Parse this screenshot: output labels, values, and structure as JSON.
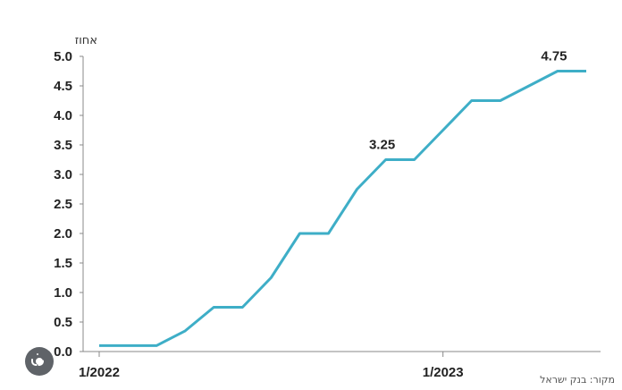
{
  "chart_data": {
    "type": "line",
    "ylabel": "אחוז",
    "ylim": [
      0,
      5.0
    ],
    "yticks": [
      "5.0",
      "4.5",
      "4.0",
      "3.5",
      "3.0",
      "2.5",
      "2.0",
      "1.5",
      "1.0",
      "0.5",
      "0.0"
    ],
    "xticks": [
      {
        "label": "1/2022",
        "x": 0
      },
      {
        "label": "1/2023",
        "x": 12
      }
    ],
    "xlim": [
      0,
      17.5
    ],
    "grid": false,
    "line_color": "#3eaec7",
    "series": [
      {
        "points": [
          {
            "x": 0,
            "y": 0.1
          },
          {
            "x": 2,
            "y": 0.1
          },
          {
            "x": 3,
            "y": 0.35
          },
          {
            "x": 4,
            "y": 0.75
          },
          {
            "x": 5,
            "y": 0.75
          },
          {
            "x": 6,
            "y": 1.25
          },
          {
            "x": 7,
            "y": 2.0
          },
          {
            "x": 8,
            "y": 2.0
          },
          {
            "x": 9,
            "y": 2.75
          },
          {
            "x": 10,
            "y": 3.25
          },
          {
            "x": 11,
            "y": 3.25
          },
          {
            "x": 12,
            "y": 3.75
          },
          {
            "x": 13,
            "y": 4.25
          },
          {
            "x": 14,
            "y": 4.25
          },
          {
            "x": 15,
            "y": 4.5
          },
          {
            "x": 16,
            "y": 4.75
          },
          {
            "x": 17,
            "y": 4.75
          }
        ]
      }
    ],
    "annotations": [
      {
        "text": "3.25",
        "x": 10,
        "y": 3.25
      },
      {
        "text": "4.75",
        "x": 16,
        "y": 4.75
      }
    ],
    "source": "מקור: בנק ישראל"
  }
}
